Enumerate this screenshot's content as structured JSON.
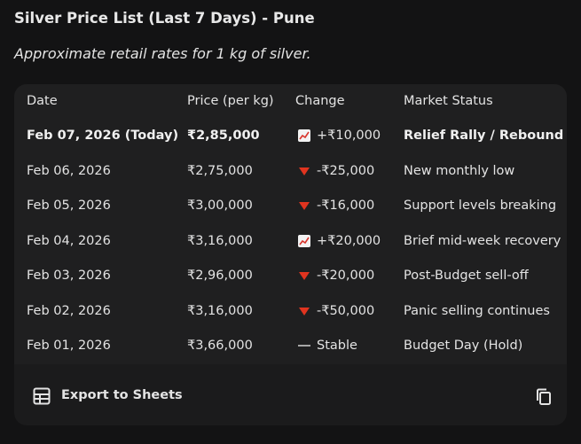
{
  "header": {
    "title": "Silver Price List (Last 7 Days) - Pune",
    "subtitle": "Approximate retail rates for 1 kg of silver."
  },
  "table": {
    "columns": [
      "Date",
      "Price (per kg)",
      "Change",
      "Market Status"
    ],
    "rows": [
      [
        "Feb 07, 2026 (Today)",
        "₹2,85,000",
        "+₹10,000",
        "Relief Rally / Rebound"
      ],
      [
        "Feb 06, 2026",
        "₹2,75,000",
        "-₹25,000",
        "New monthly low"
      ],
      [
        "Feb 05, 2026",
        "₹3,00,000",
        "-₹16,000",
        "Support levels breaking"
      ],
      [
        "Feb 04, 2026",
        "₹3,16,000",
        "+₹20,000",
        "Brief mid-week recovery"
      ],
      [
        "Feb 03, 2026",
        "₹2,96,000",
        "-₹20,000",
        "Post-Budget sell-off"
      ],
      [
        "Feb 02, 2026",
        "₹3,16,000",
        "-₹50,000",
        "Panic selling continues"
      ],
      [
        "Feb 01, 2026",
        "₹3,66,000",
        "Stable",
        "Budget Day (Hold)"
      ]
    ]
  },
  "footer": {
    "export": "Export to Sheets"
  }
}
